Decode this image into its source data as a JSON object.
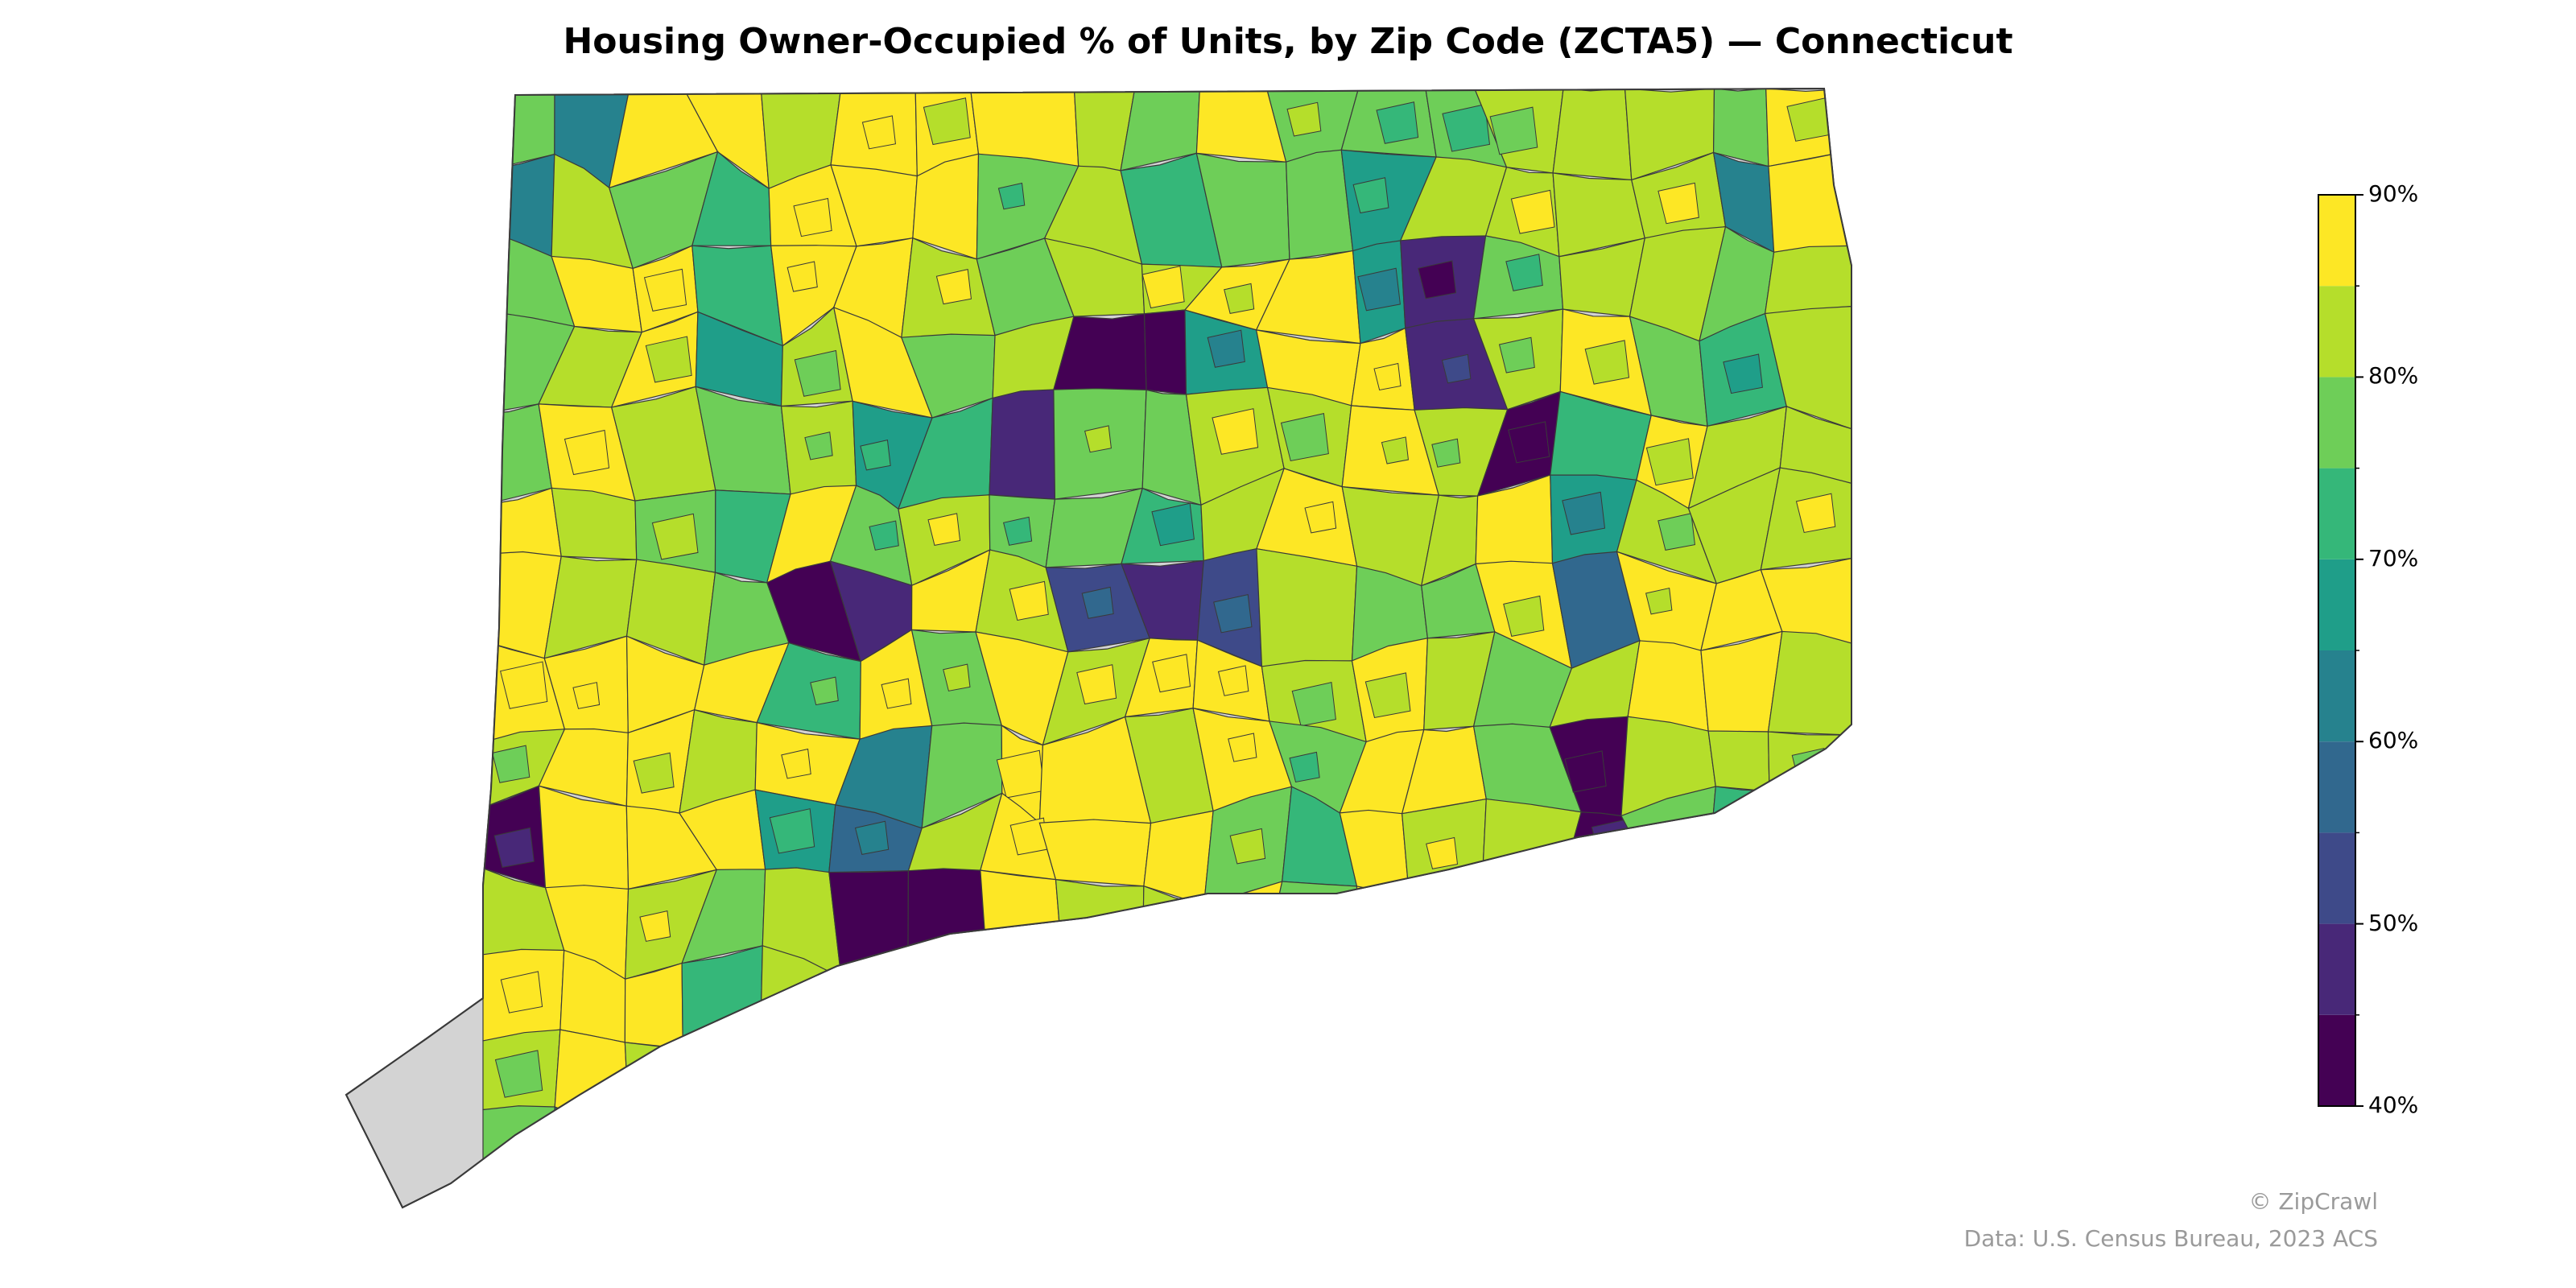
{
  "title": "Housing Owner-Occupied % of Units, by Zip Code (ZCTA5) — Connecticut",
  "legend": {
    "min": 40,
    "max": 90,
    "ticks": [
      "40%",
      "50%",
      "60%",
      "70%",
      "80%",
      "90%"
    ],
    "bins": [
      {
        "from": 40,
        "to": 45,
        "color": "#440154"
      },
      {
        "from": 45,
        "to": 50,
        "color": "#482878"
      },
      {
        "from": 50,
        "to": 55,
        "color": "#3e4a89"
      },
      {
        "from": 55,
        "to": 60,
        "color": "#31688e"
      },
      {
        "from": 60,
        "to": 65,
        "color": "#26828e"
      },
      {
        "from": 65,
        "to": 70,
        "color": "#1f9e89"
      },
      {
        "from": 70,
        "to": 75,
        "color": "#35b779"
      },
      {
        "from": 75,
        "to": 80,
        "color": "#6ece58"
      },
      {
        "from": 80,
        "to": 85,
        "color": "#b5de2b"
      },
      {
        "from": 85,
        "to": 90,
        "color": "#fde725"
      }
    ]
  },
  "credit": "© ZipCrawl",
  "source": "Data: U.S. Census Bureau, 2023 ACS",
  "colors": {
    "no_data": "#d3d3d3",
    "border": "#3a3a3a",
    "water": "#ffffff"
  }
}
